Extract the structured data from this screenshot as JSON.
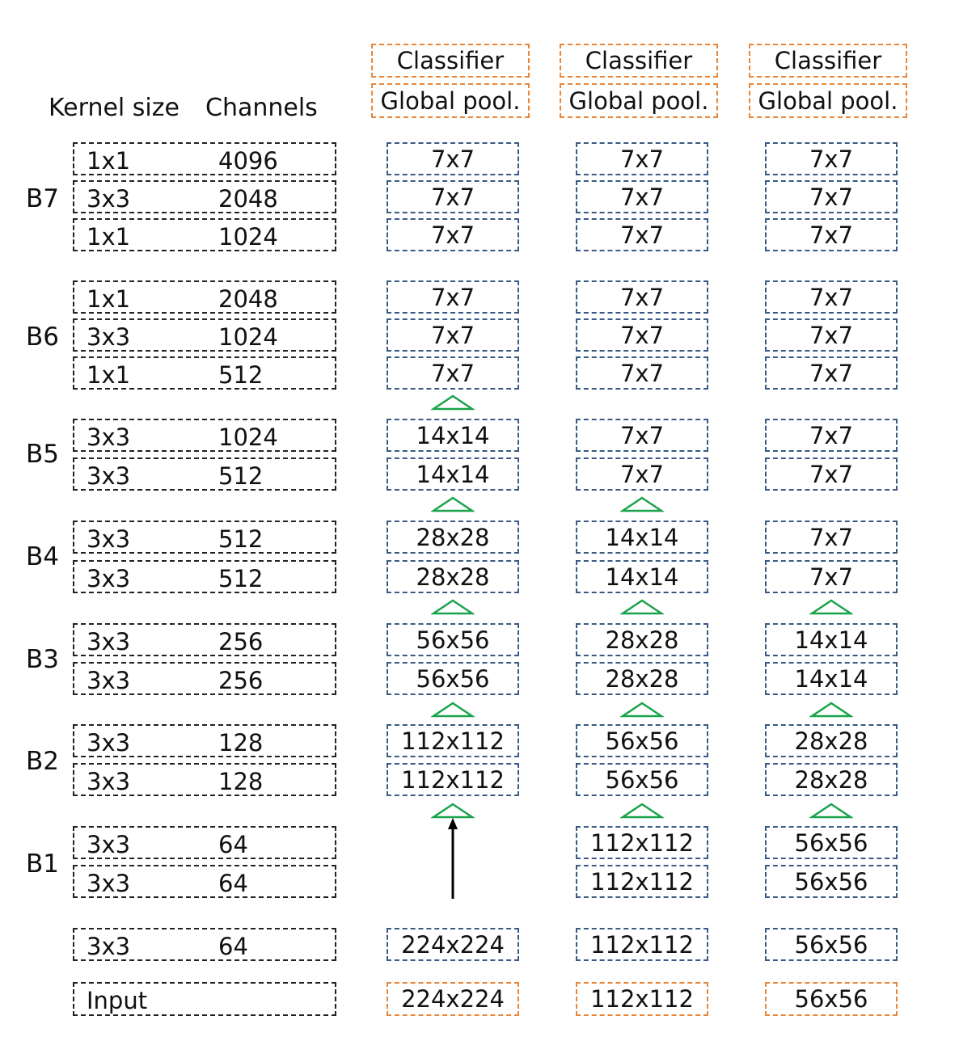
{
  "header": {
    "kernel_label": "Kernel size",
    "channels_label": "Channels",
    "classifier_label": "Classifier",
    "pool_label": "Global pool."
  },
  "colors": {
    "feature_border": "#3a5a85",
    "io_border": "#e8873a",
    "arrow": "#1aa34a"
  },
  "blocks": [
    {
      "label": "B7",
      "layers": [
        {
          "k": "1x1",
          "c": "4096"
        },
        {
          "k": "3x3",
          "c": "2048"
        },
        {
          "k": "1x1",
          "c": "1024"
        }
      ]
    },
    {
      "label": "B6",
      "layers": [
        {
          "k": "1x1",
          "c": "2048"
        },
        {
          "k": "3x3",
          "c": "1024"
        },
        {
          "k": "1x1",
          "c": "512"
        }
      ]
    },
    {
      "label": "B5",
      "layers": [
        {
          "k": "3x3",
          "c": "1024"
        },
        {
          "k": "3x3",
          "c": "512"
        }
      ]
    },
    {
      "label": "B4",
      "layers": [
        {
          "k": "3x3",
          "c": "512"
        },
        {
          "k": "3x3",
          "c": "512"
        }
      ]
    },
    {
      "label": "B3",
      "layers": [
        {
          "k": "3x3",
          "c": "256"
        },
        {
          "k": "3x3",
          "c": "256"
        }
      ]
    },
    {
      "label": "B2",
      "layers": [
        {
          "k": "3x3",
          "c": "128"
        },
        {
          "k": "3x3",
          "c": "128"
        }
      ]
    },
    {
      "label": "B1",
      "layers": [
        {
          "k": "3x3",
          "c": "64"
        },
        {
          "k": "3x3",
          "c": "64"
        }
      ]
    }
  ],
  "stem": {
    "k": "3x3",
    "c": "64"
  },
  "input_label": "Input",
  "columns": [
    {
      "sizes": [
        "7x7",
        "7x7",
        "7x7",
        "7x7",
        "7x7",
        "7x7",
        "14x14",
        "14x14",
        "28x28",
        "28x28",
        "56x56",
        "56x56",
        "112x112",
        "112x112",
        "",
        "",
        "224x224"
      ],
      "input": "224x224"
    },
    {
      "sizes": [
        "7x7",
        "7x7",
        "7x7",
        "7x7",
        "7x7",
        "7x7",
        "7x7",
        "7x7",
        "14x14",
        "14x14",
        "28x28",
        "28x28",
        "56x56",
        "56x56",
        "112x112",
        "112x112",
        "112x112"
      ],
      "input": "112x112"
    },
    {
      "sizes": [
        "7x7",
        "7x7",
        "7x7",
        "7x7",
        "7x7",
        "7x7",
        "7x7",
        "7x7",
        "7x7",
        "7x7",
        "14x14",
        "14x14",
        "28x28",
        "28x28",
        "56x56",
        "56x56",
        "56x56"
      ],
      "input": "56x56"
    }
  ]
}
